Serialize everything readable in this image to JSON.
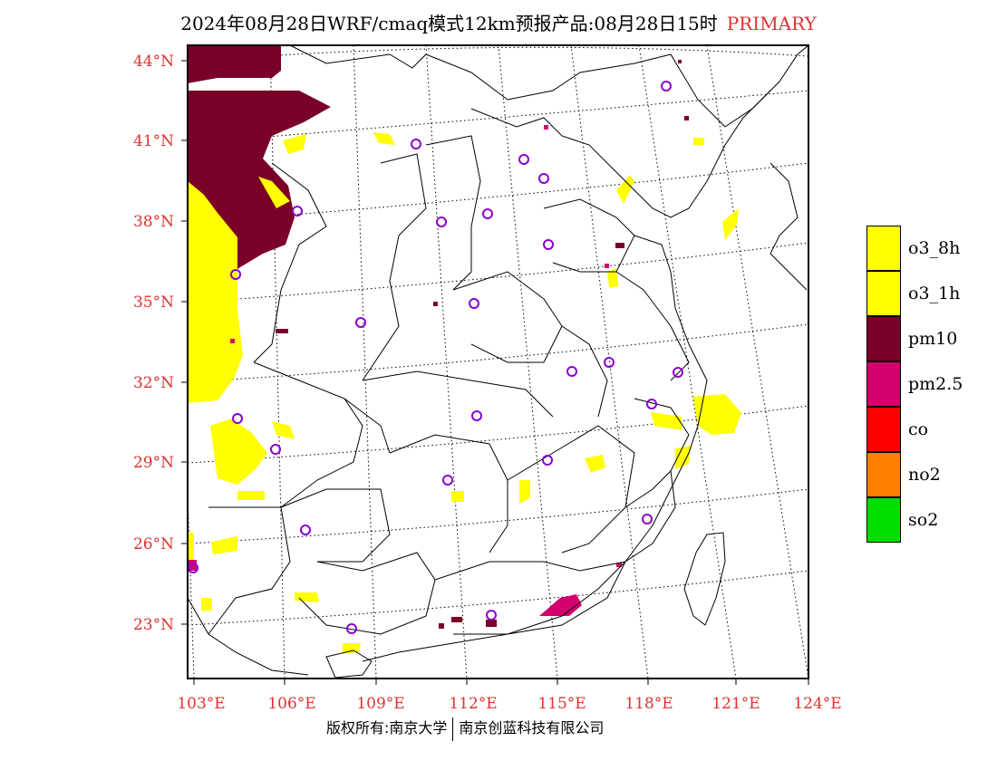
{
  "title": {
    "text": "2024年08月28日WRF/cmaq模式12km预报产品:08月28日15时",
    "tag": "PRIMARY"
  },
  "map": {
    "lat_labels": [
      "44°N",
      "41°N",
      "38°N",
      "35°N",
      "32°N",
      "29°N",
      "26°N",
      "23°N"
    ],
    "lon_labels": [
      "103°E",
      "106°E",
      "109°E",
      "112°E",
      "115°E",
      "118°E",
      "121°E",
      "124°E"
    ],
    "colors": {
      "o3_8h": "#ffff00",
      "o3_1h": "#ffff00",
      "pm10": "#7a0028",
      "pm2_5": "#d4006e",
      "co": "#ff0000",
      "no2": "#ff7f00",
      "so2": "#00dd00",
      "city_marker": "#8a00d4",
      "axis_label": "#e03030"
    }
  },
  "legend": [
    {
      "label": "o3_8h",
      "color": "#ffff00"
    },
    {
      "label": "o3_1h",
      "color": "#ffff00"
    },
    {
      "label": "pm10",
      "color": "#7a0028"
    },
    {
      "label": "pm2.5",
      "color": "#d4006e"
    },
    {
      "label": "co",
      "color": "#ff0000"
    },
    {
      "label": "no2",
      "color": "#ff7f00"
    },
    {
      "label": "so2",
      "color": "#00dd00"
    }
  ],
  "footer": {
    "copyright": "版权所有:南京大学",
    "company": "南京创蓝科技有限公司"
  }
}
